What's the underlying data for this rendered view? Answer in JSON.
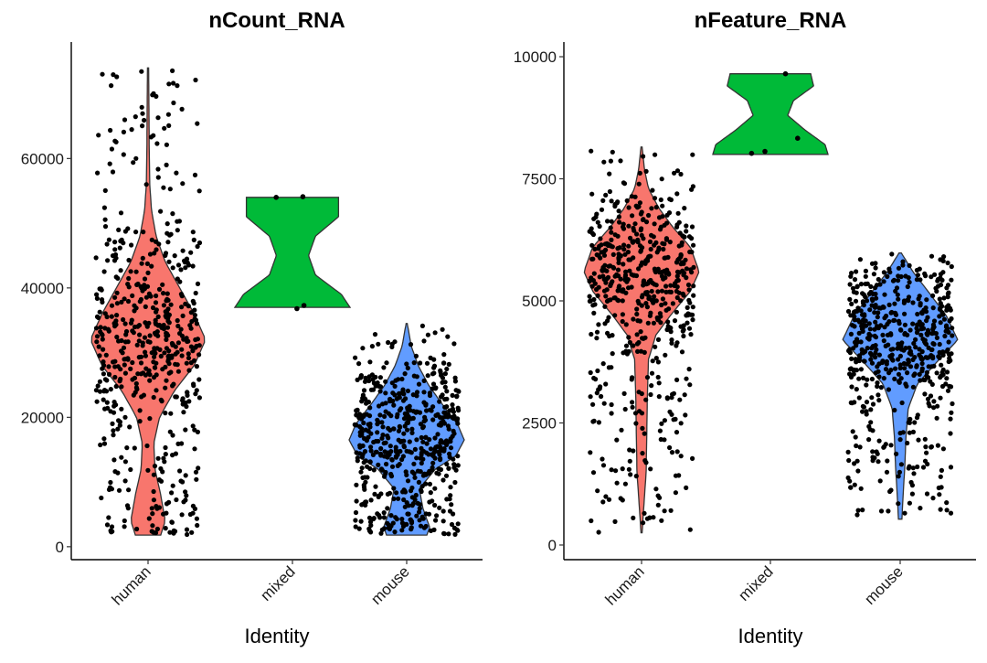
{
  "chart_data": [
    {
      "type": "violin",
      "title": "nCount_RNA",
      "xlabel": "Identity",
      "ylabel": "",
      "categories": [
        "human",
        "mixed",
        "mouse"
      ],
      "colors": [
        "#F8766D",
        "#00BA38",
        "#619CFF"
      ],
      "ylim": [
        -2000,
        78000
      ],
      "yticks": [
        0,
        20000,
        40000,
        60000
      ],
      "ytick_labels": [
        "0",
        "20000",
        "40000",
        "60000"
      ],
      "grid": false,
      "legend": "none",
      "groups": [
        {
          "name": "human",
          "n_points": 560,
          "min": 1800,
          "max": 74000,
          "mode": 32000,
          "density_profile": [
            [
              1800,
              0.22
            ],
            [
              4000,
              0.3
            ],
            [
              8000,
              0.22
            ],
            [
              12000,
              0.12
            ],
            [
              16000,
              0.1
            ],
            [
              20000,
              0.2
            ],
            [
              24000,
              0.45
            ],
            [
              28000,
              0.8
            ],
            [
              32000,
              1.0
            ],
            [
              36000,
              0.8
            ],
            [
              40000,
              0.55
            ],
            [
              44000,
              0.3
            ],
            [
              48000,
              0.14
            ],
            [
              52000,
              0.06
            ],
            [
              56000,
              0.03
            ],
            [
              62000,
              0.02
            ],
            [
              68000,
              0.015
            ],
            [
              74000,
              0.01
            ]
          ]
        },
        {
          "name": "mixed",
          "n_points": 4,
          "min": 37000,
          "max": 54000,
          "mode": 38000,
          "density_profile": [
            [
              37000,
              1.0
            ],
            [
              39000,
              0.85
            ],
            [
              42000,
              0.4
            ],
            [
              45000,
              0.28
            ],
            [
              48000,
              0.4
            ],
            [
              51000,
              0.8
            ],
            [
              54000,
              0.8
            ]
          ],
          "points": [
            37300,
            36800,
            54100,
            54000
          ]
        },
        {
          "name": "mouse",
          "n_points": 560,
          "min": 1800,
          "max": 34500,
          "mode": 16500,
          "density_profile": [
            [
              1800,
              0.35
            ],
            [
              3000,
              0.4
            ],
            [
              6000,
              0.28
            ],
            [
              9000,
              0.22
            ],
            [
              12000,
              0.5
            ],
            [
              14000,
              0.85
            ],
            [
              16500,
              1.0
            ],
            [
              19000,
              0.88
            ],
            [
              22000,
              0.62
            ],
            [
              25000,
              0.38
            ],
            [
              28000,
              0.2
            ],
            [
              31000,
              0.08
            ],
            [
              34500,
              0.01
            ]
          ]
        }
      ]
    },
    {
      "type": "violin",
      "title": "nFeature_RNA",
      "xlabel": "Identity",
      "ylabel": "",
      "categories": [
        "human",
        "mixed",
        "mouse"
      ],
      "colors": [
        "#F8766D",
        "#00BA38",
        "#619CFF"
      ],
      "ylim": [
        -300,
        10300
      ],
      "yticks": [
        0,
        2500,
        5000,
        7500,
        10000
      ],
      "ytick_labels": [
        "0",
        "2500",
        "5000",
        "7500",
        "10000"
      ],
      "grid": false,
      "legend": "none",
      "groups": [
        {
          "name": "human",
          "n_points": 560,
          "min": 250,
          "max": 8150,
          "mode": 5600,
          "density_profile": [
            [
              250,
              0.01
            ],
            [
              800,
              0.04
            ],
            [
              1500,
              0.08
            ],
            [
              2200,
              0.09
            ],
            [
              3000,
              0.1
            ],
            [
              3800,
              0.12
            ],
            [
              4300,
              0.25
            ],
            [
              4700,
              0.5
            ],
            [
              5200,
              0.85
            ],
            [
              5600,
              1.0
            ],
            [
              6100,
              0.85
            ],
            [
              6500,
              0.55
            ],
            [
              6900,
              0.3
            ],
            [
              7300,
              0.12
            ],
            [
              7700,
              0.05
            ],
            [
              8150,
              0.01
            ]
          ]
        },
        {
          "name": "mixed",
          "n_points": 4,
          "min": 8000,
          "max": 9650,
          "mode": 8100,
          "density_profile": [
            [
              8000,
              1.0
            ],
            [
              8200,
              0.95
            ],
            [
              8500,
              0.6
            ],
            [
              8800,
              0.3
            ],
            [
              9100,
              0.4
            ],
            [
              9400,
              0.75
            ],
            [
              9650,
              0.7
            ]
          ],
          "points": [
            8020,
            8330,
            9650,
            8060
          ]
        },
        {
          "name": "mouse",
          "n_points": 560,
          "min": 530,
          "max": 5980,
          "mode": 4200,
          "density_profile": [
            [
              530,
              0.03
            ],
            [
              1000,
              0.05
            ],
            [
              1600,
              0.08
            ],
            [
              2200,
              0.1
            ],
            [
              2800,
              0.14
            ],
            [
              3300,
              0.3
            ],
            [
              3700,
              0.6
            ],
            [
              4200,
              1.0
            ],
            [
              4700,
              0.8
            ],
            [
              5200,
              0.48
            ],
            [
              5600,
              0.22
            ],
            [
              5980,
              0.02
            ]
          ]
        }
      ]
    }
  ]
}
